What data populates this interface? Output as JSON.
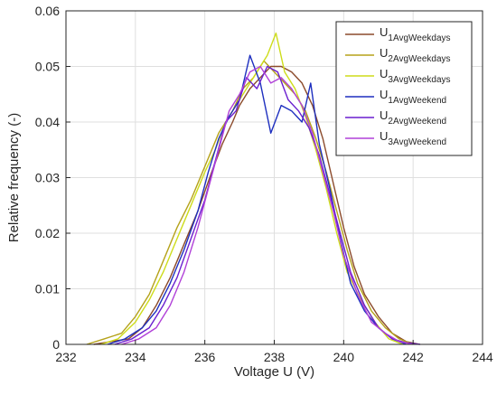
{
  "chart_data": {
    "type": "line",
    "xlabel": "Voltage U (V)",
    "ylabel": "Relative frequency (-)",
    "xlim": [
      232,
      244
    ],
    "ylim": [
      0,
      0.06
    ],
    "x_ticks": [
      232,
      234,
      236,
      238,
      240,
      242,
      244
    ],
    "x_tick_labels": [
      "232",
      "234",
      "236",
      "238",
      "240",
      "242",
      "244"
    ],
    "y_ticks": [
      0,
      0.01,
      0.02,
      0.03,
      0.04,
      0.05,
      0.06
    ],
    "y_tick_labels": [
      "0",
      "0.01",
      "0.02",
      "0.03",
      "0.04",
      "0.05",
      "0.06"
    ],
    "grid": true,
    "legend_position": "top-right",
    "series": [
      {
        "name": "U1AvgWeekdays",
        "base": "U",
        "sub": "1AvgWeekdays",
        "color": "#8B4A2B",
        "x": [
          232.8,
          233.3,
          233.8,
          234.2,
          234.6,
          235.0,
          235.4,
          235.8,
          236.2,
          236.5,
          236.8,
          237.0,
          237.3,
          237.6,
          237.9,
          238.2,
          238.5,
          238.8,
          239.1,
          239.4,
          239.7,
          240.0,
          240.3,
          240.6,
          241.0,
          241.4,
          241.8,
          242.2
        ],
        "y": [
          0.0,
          0.0005,
          0.001,
          0.003,
          0.007,
          0.012,
          0.018,
          0.024,
          0.031,
          0.036,
          0.04,
          0.043,
          0.046,
          0.048,
          0.05,
          0.05,
          0.049,
          0.047,
          0.043,
          0.037,
          0.029,
          0.021,
          0.014,
          0.009,
          0.005,
          0.002,
          0.0005,
          0.0
        ]
      },
      {
        "name": "U2AvgWeekdays",
        "base": "U",
        "sub": "2AvgWeekdays",
        "color": "#B5A21A",
        "x": [
          232.6,
          233.1,
          233.6,
          234.0,
          234.4,
          234.8,
          235.2,
          235.6,
          236.0,
          236.4,
          236.8,
          237.1,
          237.4,
          237.7,
          238.0,
          238.3,
          238.6,
          238.9,
          239.2,
          239.5,
          239.8,
          240.1,
          240.4,
          240.8,
          241.2,
          241.6,
          242.0
        ],
        "y": [
          0.0,
          0.001,
          0.002,
          0.005,
          0.009,
          0.015,
          0.021,
          0.026,
          0.032,
          0.038,
          0.042,
          0.046,
          0.048,
          0.051,
          0.049,
          0.047,
          0.045,
          0.042,
          0.037,
          0.031,
          0.024,
          0.017,
          0.011,
          0.006,
          0.003,
          0.001,
          0.0
        ]
      },
      {
        "name": "U3AvgWeekdays",
        "base": "U",
        "sub": "3AvgWeekdays",
        "color": "#CDDC1A",
        "x": [
          233.0,
          233.5,
          234.0,
          234.4,
          234.8,
          235.2,
          235.6,
          236.0,
          236.3,
          236.6,
          236.9,
          237.2,
          237.5,
          237.8,
          238.05,
          238.3,
          238.6,
          238.9,
          239.2,
          239.5,
          239.8,
          240.1,
          240.5,
          240.9,
          241.3,
          241.7
        ],
        "y": [
          0.0,
          0.001,
          0.004,
          0.008,
          0.013,
          0.019,
          0.025,
          0.031,
          0.035,
          0.04,
          0.043,
          0.046,
          0.049,
          0.052,
          0.056,
          0.049,
          0.046,
          0.041,
          0.035,
          0.028,
          0.02,
          0.013,
          0.008,
          0.004,
          0.001,
          0.0
        ]
      },
      {
        "name": "U1AvgWeekend",
        "base": "U",
        "sub": "1AvgWeekend",
        "color": "#1E2FBF",
        "x": [
          233.2,
          233.7,
          234.2,
          234.6,
          235.0,
          235.4,
          235.8,
          236.1,
          236.4,
          236.7,
          237.0,
          237.3,
          237.6,
          237.9,
          238.2,
          238.5,
          238.8,
          239.05,
          239.3,
          239.6,
          239.9,
          240.2,
          240.6,
          241.0,
          241.4,
          241.8
        ],
        "y": [
          0.0,
          0.001,
          0.003,
          0.006,
          0.011,
          0.017,
          0.024,
          0.031,
          0.037,
          0.041,
          0.044,
          0.052,
          0.047,
          0.038,
          0.043,
          0.042,
          0.04,
          0.047,
          0.036,
          0.028,
          0.019,
          0.011,
          0.006,
          0.003,
          0.001,
          0.0
        ]
      },
      {
        "name": "U2AvgWeekend",
        "base": "U",
        "sub": "2AvgWeekend",
        "color": "#6A1FCF",
        "x": [
          233.4,
          233.9,
          234.4,
          234.8,
          235.2,
          235.6,
          236.0,
          236.3,
          236.6,
          236.9,
          237.2,
          237.5,
          237.8,
          238.1,
          238.4,
          238.7,
          239.0,
          239.3,
          239.6,
          239.9,
          240.2,
          240.6,
          241.0,
          241.4,
          241.8,
          242.2
        ],
        "y": [
          0.0,
          0.001,
          0.003,
          0.007,
          0.012,
          0.019,
          0.026,
          0.033,
          0.04,
          0.042,
          0.048,
          0.046,
          0.05,
          0.049,
          0.044,
          0.042,
          0.039,
          0.034,
          0.027,
          0.02,
          0.013,
          0.007,
          0.003,
          0.001,
          0.0003,
          0.0
        ]
      },
      {
        "name": "U3AvgWeekend",
        "base": "U",
        "sub": "3AvgWeekend",
        "color": "#B040D8",
        "x": [
          233.6,
          234.1,
          234.6,
          235.0,
          235.4,
          235.8,
          236.1,
          236.4,
          236.7,
          237.0,
          237.3,
          237.6,
          237.9,
          238.2,
          238.5,
          238.8,
          239.1,
          239.4,
          239.7,
          240.0,
          240.4,
          240.8,
          241.2,
          241.6,
          242.0
        ],
        "y": [
          0.0,
          0.001,
          0.003,
          0.007,
          0.013,
          0.021,
          0.028,
          0.035,
          0.042,
          0.045,
          0.049,
          0.05,
          0.047,
          0.048,
          0.046,
          0.043,
          0.038,
          0.031,
          0.024,
          0.016,
          0.009,
          0.004,
          0.002,
          0.0005,
          0.0
        ]
      }
    ]
  }
}
